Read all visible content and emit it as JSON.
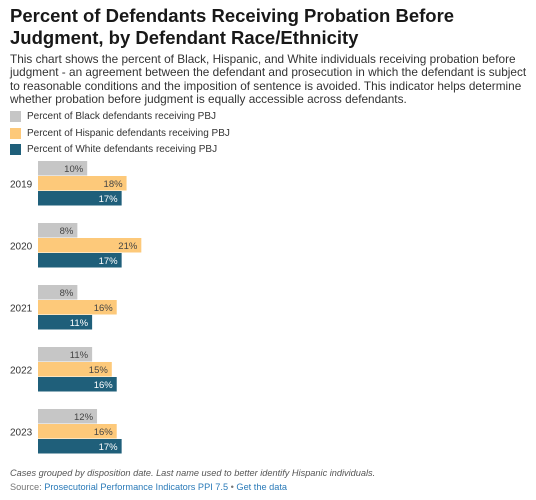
{
  "header": {
    "title": "Percent of Defendants Receiving Probation Before Judgment, by Defendant Race/Ethnicity",
    "description": "This chart shows the percent of Black, Hispanic, and White individuals receiving probation before judgment - an agreement between the defendant and prosecution in which the defendant is subject to reasonable conditions and the imposition of sentence is avoided. This indicator helps determine whether probation before judgment is equally accessible across defendants."
  },
  "chart_data": {
    "type": "bar",
    "orientation": "horizontal",
    "categories": [
      "2019",
      "2020",
      "2021",
      "2022",
      "2023"
    ],
    "series": [
      {
        "name": "Percent of Black defendants receiving PBJ",
        "color": "#c6c6c6",
        "values": [
          10,
          8,
          8,
          11,
          12
        ]
      },
      {
        "name": "Percent of Hispanic defendants receiving PBJ",
        "color": "#fdc97a",
        "values": [
          18,
          21,
          16,
          15,
          16
        ]
      },
      {
        "name": "Percent of White defendants receiving PBJ",
        "color": "#1f5f7a",
        "values": [
          17,
          17,
          11,
          16,
          17
        ]
      }
    ],
    "value_suffix": "%",
    "legend_position": "top-left",
    "grid": false
  },
  "footer": {
    "note": "Cases grouped by disposition date. Last name used to better identify Hispanic individuals.",
    "source_label": "Source:",
    "source_link": "Prosecutorial Performance Indicators PPI 7.5",
    "separator": "•",
    "data_link": "Get the data"
  }
}
